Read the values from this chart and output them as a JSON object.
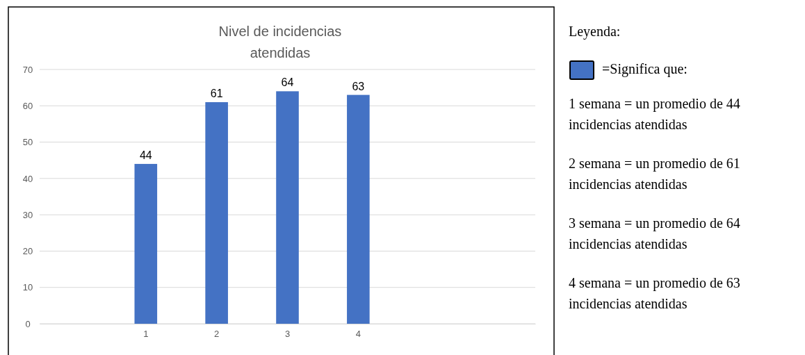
{
  "chart_data": {
    "type": "bar",
    "title": "Nivel de incidencias atendidas",
    "categories": [
      null,
      "1",
      "2",
      "3",
      "4",
      null,
      null
    ],
    "values": [
      null,
      44,
      61,
      64,
      63,
      null,
      null
    ],
    "color": "#4472c4",
    "ylim": [
      0,
      70
    ],
    "yticks": [
      0,
      10,
      20,
      30,
      40,
      50,
      60,
      70
    ],
    "grid": "y",
    "data_labels": true,
    "annotations": [
      "Leyenda:",
      "=Significa que:",
      "1 semana = un promedio de 44 incidencias atendidas",
      "2 semana = un promedio de 61 incidencias atendidas",
      "3 semana = un promedio de 64 incidencias atendidas",
      "4 semana = un promedio de 63 incidencias atendidas"
    ]
  }
}
